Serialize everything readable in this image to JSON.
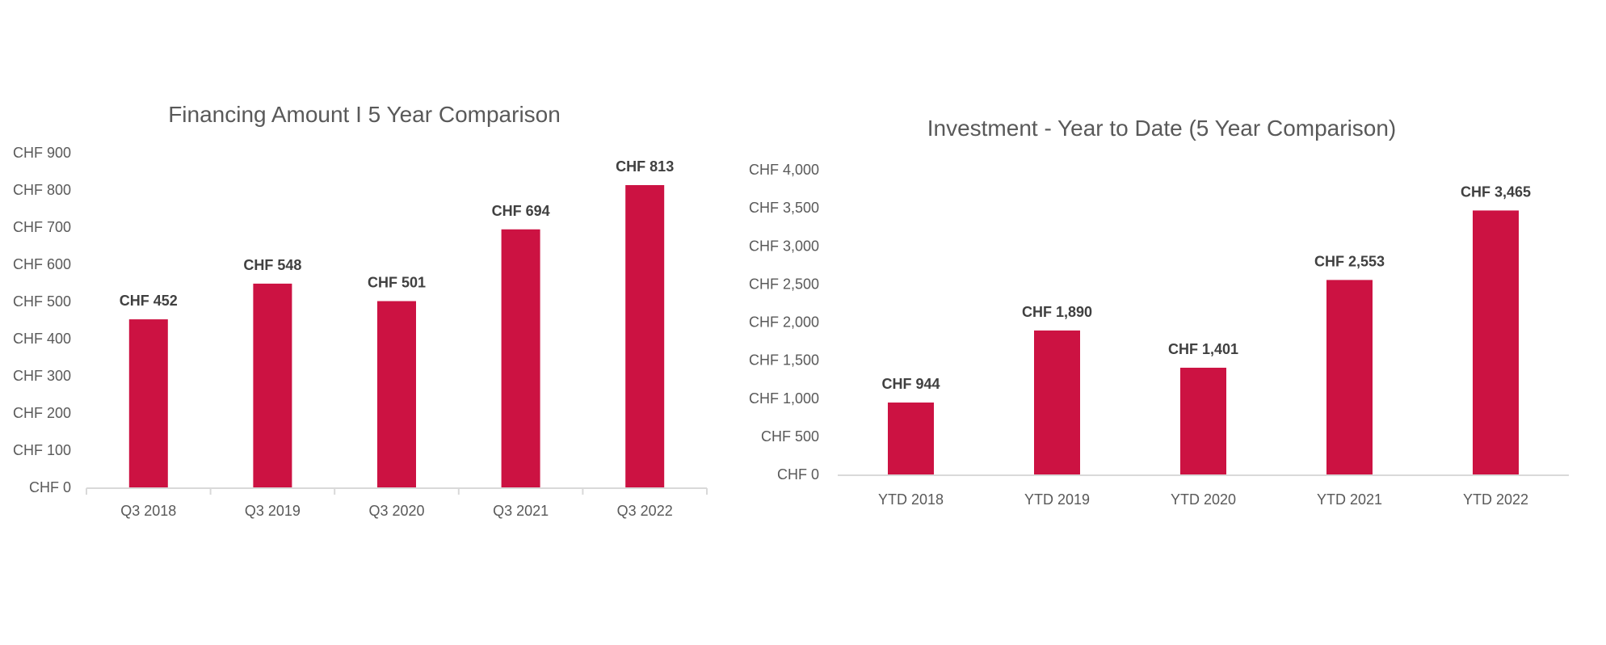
{
  "colors": {
    "bar": "#cc1242",
    "text": "#595959",
    "label": "#404040",
    "axis": "#d9d9d9"
  },
  "chart_data": [
    {
      "type": "bar",
      "title": "Financing Amount I 5 Year Comparison",
      "xlabel": "",
      "ylabel": "",
      "categories": [
        "Q3 2018",
        "Q3 2019",
        "Q3 2020",
        "Q3 2021",
        "Q3 2022"
      ],
      "values": [
        452,
        548,
        501,
        694,
        813
      ],
      "data_labels": [
        "CHF 452",
        "CHF 548",
        "CHF 501",
        "CHF 694",
        "CHF 813"
      ],
      "ylim": [
        0,
        900
      ],
      "yticks": [
        0,
        100,
        200,
        300,
        400,
        500,
        600,
        700,
        800,
        900
      ],
      "ytick_labels": [
        "CHF 0",
        "CHF 100",
        "CHF 200",
        "CHF 300",
        "CHF 400",
        "CHF 500",
        "CHF 600",
        "CHF 700",
        "CHF 800",
        "CHF 900"
      ],
      "grid": false,
      "legend": "none",
      "x_tick_marks": true
    },
    {
      "type": "bar",
      "title": "Investment - Year to Date (5 Year Comparison)",
      "xlabel": "",
      "ylabel": "",
      "categories": [
        "YTD 2018",
        "YTD 2019",
        "YTD 2020",
        "YTD 2021",
        "YTD 2022"
      ],
      "values": [
        944,
        1890,
        1401,
        2553,
        3465
      ],
      "data_labels": [
        "CHF 944",
        "CHF 1,890",
        "CHF 1,401",
        "CHF 2,553",
        "CHF 3,465"
      ],
      "ylim": [
        0,
        4000
      ],
      "yticks": [
        0,
        500,
        1000,
        1500,
        2000,
        2500,
        3000,
        3500,
        4000
      ],
      "ytick_labels": [
        "CHF 0",
        "CHF 500",
        "CHF 1,000",
        "CHF 1,500",
        "CHF 2,000",
        "CHF 2,500",
        "CHF 3,000",
        "CHF 3,500",
        "CHF 4,000"
      ],
      "grid": false,
      "legend": "none",
      "x_tick_marks": false
    }
  ]
}
